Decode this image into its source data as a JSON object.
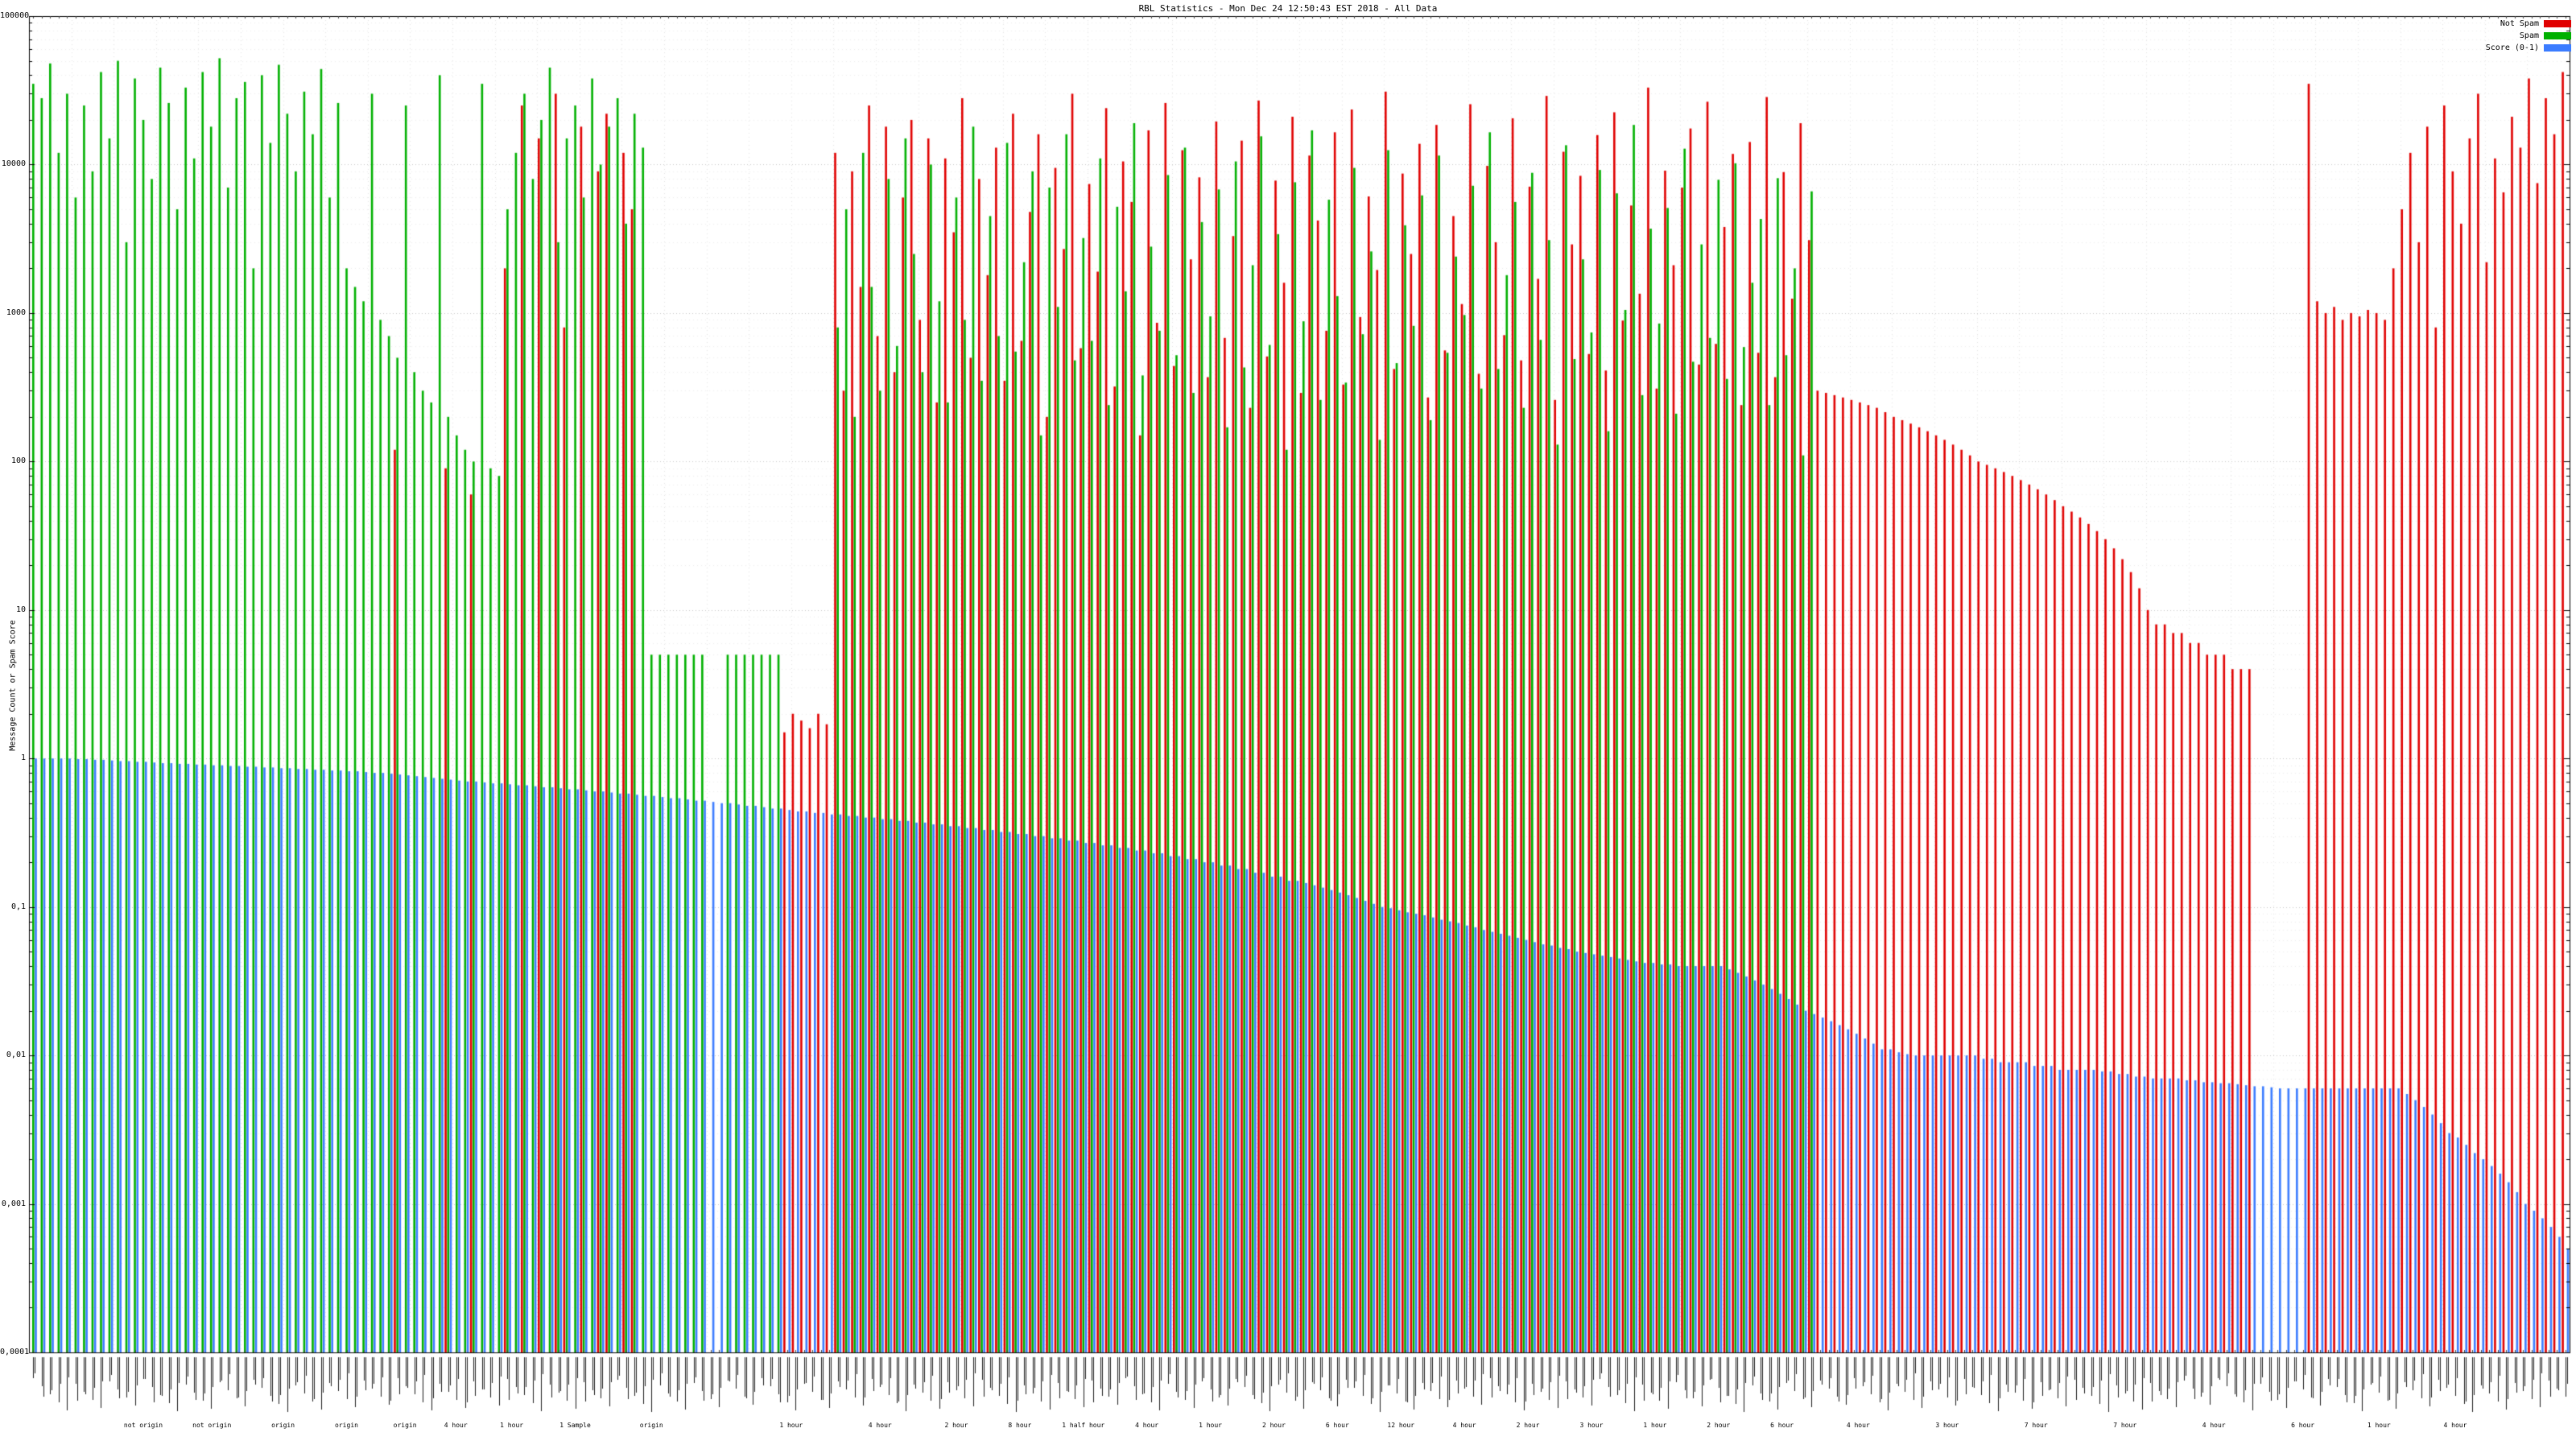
{
  "chart_data": {
    "type": "bar",
    "title": "RBL Statistics - Mon Dec 24 12:50:43 EST 2018 - All Data",
    "ylabel": "Message Count or Spam Score",
    "y_scale": "log",
    "ylim": [
      0.0001,
      100000
    ],
    "grid": true,
    "legend_position": "top-right",
    "y_ticks": [
      "100000",
      "10000",
      "1000",
      "100",
      "10",
      "1",
      "0,1",
      "0,01",
      "0,001",
      "0,0001"
    ],
    "y_tick_values": [
      100000,
      10000,
      1000,
      100,
      10,
      1,
      0.1,
      0.01,
      0.001,
      0.0001
    ],
    "series": [
      {
        "name": "Not Spam",
        "color": "#e00000",
        "values": [
          0,
          0,
          0,
          0,
          0,
          0,
          0,
          0,
          0,
          0,
          0,
          0,
          0,
          0,
          0,
          0,
          0,
          0,
          0,
          0,
          0,
          0,
          0,
          0,
          0,
          0,
          0,
          0,
          0,
          0,
          0,
          0,
          0,
          0,
          0,
          0,
          0,
          0,
          0,
          0,
          0,
          0,
          0,
          120,
          0,
          0,
          0,
          0,
          0,
          90,
          0,
          0,
          60,
          0,
          0,
          0,
          2000,
          0,
          25000,
          0,
          15000,
          0,
          30000,
          800,
          0,
          18000,
          0,
          9000,
          22000,
          0,
          12000,
          5000,
          0,
          0,
          0,
          0,
          0,
          0,
          0,
          0,
          0,
          0,
          0,
          0,
          0,
          0,
          0,
          0,
          0,
          1.5,
          2,
          1.8,
          1.6,
          2,
          1.7,
          12000,
          300,
          9000,
          1500,
          25000,
          700,
          18000,
          400,
          6000,
          20000,
          900,
          15000,
          250,
          11000,
          3500,
          28000,
          500,
          8000,
          1800,
          13000,
          350,
          22000,
          650,
          4800,
          16000,
          200,
          9500,
          2700,
          30000,
          580,
          7400,
          1900,
          24000,
          320,
          10500,
          5600,
          150,
          17000,
          860,
          26000,
          440,
          12500,
          2300,
          8200,
          370,
          19500,
          680,
          3300,
          14500,
          230,
          27000,
          510,
          7800,
          1600,
          21000,
          290,
          11500,
          4200,
          760,
          16500,
          330,
          23500,
          940,
          6100,
          1950,
          31000,
          420,
          8700,
          2500,
          13800,
          270,
          18500,
          560,
          4500,
          1150,
          25500,
          390,
          9800,
          3000,
          710,
          20500,
          480,
          7100,
          1700,
          29000,
          260,
          12200,
          2900,
          8400,
          530,
          15800,
          410,
          22500,
          890,
          5300,
          1350,
          33000,
          310,
          9100,
          2100,
          7000,
          17500,
          450,
          26500,
          620,
          3800,
          11800,
          240,
          14200,
          540,
          28500,
          370,
          8900,
          1250,
          19000,
          3100,
          300,
          290,
          280,
          270,
          260,
          250,
          240,
          230,
          215,
          200,
          190,
          180,
          170,
          160,
          150,
          140,
          130,
          120,
          110,
          100,
          95,
          90,
          85,
          80,
          75,
          70,
          65,
          60,
          55,
          50,
          46,
          42,
          38,
          34,
          30,
          26,
          22,
          18,
          14,
          10,
          8,
          8,
          7,
          7,
          6,
          6,
          5,
          5,
          5,
          4,
          4,
          4,
          0,
          0,
          0,
          0,
          0,
          0,
          35000,
          1200,
          1000,
          1100,
          900,
          1000,
          950,
          1050,
          1000,
          900,
          2000,
          5000,
          12000,
          3000,
          18000,
          800,
          25000,
          9000,
          4000,
          15000,
          30000,
          2200,
          11000,
          6500,
          21000,
          13000,
          38000,
          7500,
          28000,
          16000,
          42000
        ]
      },
      {
        "name": "Spam",
        "color": "#00b000",
        "values": [
          35000,
          28000,
          48000,
          12000,
          30000,
          6000,
          25000,
          9000,
          42000,
          15000,
          50000,
          3000,
          38000,
          20000,
          8000,
          45000,
          26000,
          5000,
          33000,
          11000,
          42000,
          18000,
          52000,
          7000,
          28000,
          36000,
          2000,
          40000,
          14000,
          47000,
          22000,
          9000,
          31000,
          16000,
          44000,
          6000,
          26000,
          2000,
          1500,
          1200,
          30000,
          900,
          700,
          500,
          25000,
          400,
          300,
          250,
          40000,
          200,
          150,
          120,
          100,
          35000,
          90,
          80,
          5000,
          12000,
          30000,
          8000,
          20000,
          45000,
          3000,
          15000,
          25000,
          6000,
          38000,
          10000,
          18000,
          28000,
          4000,
          22000,
          13000,
          5,
          5,
          5,
          5,
          5,
          5,
          5,
          0,
          0,
          5,
          5,
          5,
          5,
          5,
          5,
          5,
          0,
          0,
          0,
          0,
          0,
          0,
          800,
          5000,
          200,
          12000,
          1500,
          300,
          8000,
          600,
          15000,
          2500,
          400,
          10000,
          1200,
          250,
          6000,
          900,
          18000,
          350,
          4500,
          700,
          14000,
          550,
          2200,
          9000,
          150,
          7000,
          1100,
          16000,
          480,
          3200,
          650,
          11000,
          240,
          5200,
          1400,
          19000,
          380,
          2800,
          760,
          8500,
          520,
          13000,
          290,
          4100,
          950,
          6800,
          170,
          10500,
          430,
          2100,
          15500,
          610,
          3400,
          120,
          7600,
          880,
          17000,
          260,
          5800,
          1300,
          340,
          9500,
          720,
          2600,
          140,
          12500,
          460,
          3900,
          820,
          6200,
          190,
          11500,
          540,
          2400,
          970,
          7200,
          310,
          16500,
          420,
          1800,
          5600,
          230,
          8800,
          660,
          3100,
          130,
          13500,
          490,
          2300,
          740,
          9200,
          160,
          6400,
          1050,
          18500,
          280,
          3700,
          850,
          5100,
          210,
          12800,
          470,
          2900,
          680,
          7900,
          360,
          10200,
          590,
          1600,
          4300,
          240,
          8100,
          520,
          2000,
          110,
          6600,
          0,
          0,
          0,
          0,
          0,
          0,
          0,
          0,
          0,
          0,
          0,
          0,
          0,
          0,
          0,
          0,
          0,
          0,
          0,
          0,
          0,
          0,
          0,
          0,
          0,
          0,
          0,
          0,
          0,
          0,
          0,
          0,
          0,
          0,
          0,
          0,
          0,
          0,
          0,
          0,
          0,
          0,
          0,
          0,
          0,
          0,
          0,
          0,
          0,
          0,
          0,
          0,
          0,
          0,
          0,
          0,
          0,
          0,
          0,
          0,
          0,
          0,
          0,
          0,
          0,
          0,
          0,
          0,
          0,
          0,
          0,
          0,
          0,
          0,
          0,
          0,
          0,
          0,
          0,
          0,
          0,
          0,
          0,
          0,
          0,
          0,
          0,
          0,
          0
        ]
      },
      {
        "name": "Score (0-1)",
        "color": "#3b7cff",
        "values": [
          1,
          1,
          1,
          1,
          1,
          0.99,
          0.99,
          0.98,
          0.98,
          0.97,
          0.96,
          0.96,
          0.95,
          0.95,
          0.94,
          0.93,
          0.93,
          0.92,
          0.92,
          0.91,
          0.91,
          0.9,
          0.9,
          0.89,
          0.89,
          0.88,
          0.88,
          0.87,
          0.87,
          0.86,
          0.86,
          0.85,
          0.85,
          0.84,
          0.84,
          0.83,
          0.83,
          0.82,
          0.82,
          0.81,
          0.8,
          0.8,
          0.79,
          0.78,
          0.77,
          0.76,
          0.75,
          0.74,
          0.73,
          0.72,
          0.71,
          0.7,
          0.7,
          0.69,
          0.68,
          0.68,
          0.67,
          0.66,
          0.66,
          0.65,
          0.64,
          0.64,
          0.63,
          0.62,
          0.62,
          0.61,
          0.6,
          0.6,
          0.59,
          0.58,
          0.58,
          0.57,
          0.56,
          0.56,
          0.55,
          0.54,
          0.54,
          0.53,
          0.52,
          0.52,
          0.51,
          0.5,
          0.5,
          0.49,
          0.48,
          0.48,
          0.47,
          0.46,
          0.46,
          0.45,
          0.44,
          0.44,
          0.43,
          0.43,
          0.42,
          0.42,
          0.41,
          0.41,
          0.4,
          0.4,
          0.39,
          0.39,
          0.38,
          0.38,
          0.37,
          0.37,
          0.36,
          0.36,
          0.35,
          0.35,
          0.34,
          0.34,
          0.33,
          0.33,
          0.32,
          0.32,
          0.31,
          0.31,
          0.3,
          0.3,
          0.29,
          0.29,
          0.28,
          0.28,
          0.27,
          0.27,
          0.26,
          0.26,
          0.25,
          0.25,
          0.24,
          0.24,
          0.23,
          0.23,
          0.22,
          0.22,
          0.21,
          0.21,
          0.2,
          0.2,
          0.19,
          0.19,
          0.18,
          0.18,
          0.17,
          0.17,
          0.16,
          0.16,
          0.15,
          0.15,
          0.145,
          0.14,
          0.135,
          0.13,
          0.125,
          0.12,
          0.115,
          0.11,
          0.105,
          0.1,
          0.098,
          0.095,
          0.092,
          0.09,
          0.088,
          0.085,
          0.082,
          0.08,
          0.078,
          0.075,
          0.073,
          0.07,
          0.068,
          0.066,
          0.064,
          0.062,
          0.06,
          0.058,
          0.056,
          0.055,
          0.053,
          0.052,
          0.05,
          0.049,
          0.048,
          0.047,
          0.046,
          0.045,
          0.044,
          0.043,
          0.042,
          0.042,
          0.041,
          0.041,
          0.04,
          0.04,
          0.04,
          0.04,
          0.04,
          0.04,
          0.038,
          0.036,
          0.034,
          0.032,
          0.03,
          0.028,
          0.026,
          0.024,
          0.022,
          0.02,
          0.019,
          0.018,
          0.017,
          0.016,
          0.015,
          0.014,
          0.013,
          0.012,
          0.011,
          0.011,
          0.0105,
          0.0102,
          0.01,
          0.01,
          0.01,
          0.01,
          0.01,
          0.01,
          0.01,
          0.01,
          0.0095,
          0.0095,
          0.009,
          0.009,
          0.009,
          0.009,
          0.0085,
          0.0085,
          0.0085,
          0.008,
          0.008,
          0.008,
          0.008,
          0.008,
          0.0078,
          0.0078,
          0.0075,
          0.0075,
          0.0072,
          0.0072,
          0.007,
          0.007,
          0.007,
          0.007,
          0.0068,
          0.0068,
          0.0066,
          0.0066,
          0.0065,
          0.0065,
          0.0064,
          0.0063,
          0.0062,
          0.0062,
          0.0061,
          0.006,
          0.006,
          0.006,
          0.006,
          0.006,
          0.006,
          0.006,
          0.006,
          0.006,
          0.006,
          0.006,
          0.006,
          0.006,
          0.006,
          0.006,
          0.0055,
          0.005,
          0.0045,
          0.004,
          0.0035,
          0.003,
          0.0028,
          0.0025,
          0.0022,
          0.002,
          0.0018,
          0.0016,
          0.0014,
          0.0012,
          0.001,
          0.0009,
          0.0008,
          0.0007,
          0.0006,
          0.0005
        ]
      }
    ],
    "x_sub_labels": [
      {
        "text": "not origin",
        "pos": 0.045
      },
      {
        "text": "not origin",
        "pos": 0.072
      },
      {
        "text": "origin",
        "pos": 0.1
      },
      {
        "text": "origin",
        "pos": 0.125
      },
      {
        "text": "origin",
        "pos": 0.148
      },
      {
        "text": "4 hour",
        "pos": 0.168
      },
      {
        "text": "1 hour",
        "pos": 0.19
      },
      {
        "text": "1 Sample",
        "pos": 0.215
      },
      {
        "text": "origin",
        "pos": 0.245
      },
      {
        "text": "1 hour",
        "pos": 0.3
      },
      {
        "text": "4 hour",
        "pos": 0.335
      },
      {
        "text": "2 hour",
        "pos": 0.365
      },
      {
        "text": "8 hour",
        "pos": 0.39
      },
      {
        "text": "1 half hour",
        "pos": 0.415
      },
      {
        "text": "4 hour",
        "pos": 0.44
      },
      {
        "text": "1 hour",
        "pos": 0.465
      },
      {
        "text": "2 hour",
        "pos": 0.49
      },
      {
        "text": "6 hour",
        "pos": 0.515
      },
      {
        "text": "12 hour",
        "pos": 0.54
      },
      {
        "text": "4 hour",
        "pos": 0.565
      },
      {
        "text": "2 hour",
        "pos": 0.59
      },
      {
        "text": "3 hour",
        "pos": 0.615
      },
      {
        "text": "1 hour",
        "pos": 0.64
      },
      {
        "text": "2 hour",
        "pos": 0.665
      },
      {
        "text": "6 hour",
        "pos": 0.69
      },
      {
        "text": "4 hour",
        "pos": 0.72
      },
      {
        "text": "3 hour",
        "pos": 0.755
      },
      {
        "text": "7 hour",
        "pos": 0.79
      },
      {
        "text": "7 hour",
        "pos": 0.825
      },
      {
        "text": "4 hour",
        "pos": 0.86
      },
      {
        "text": "6 hour",
        "pos": 0.895
      },
      {
        "text": "1 hour",
        "pos": 0.925
      },
      {
        "text": "4 hour",
        "pos": 0.955
      }
    ]
  }
}
